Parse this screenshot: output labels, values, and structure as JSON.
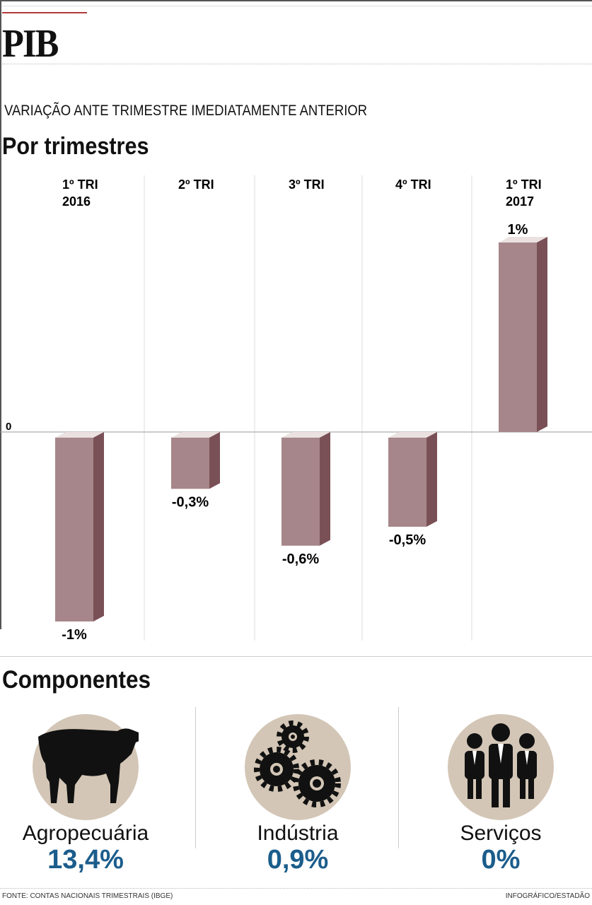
{
  "header": {
    "title": "PIB",
    "subtitle": "VARIAÇÃO ANTE TRIMESTRE IMEDIATAMENTE ANTERIOR",
    "section": "Por trimestres"
  },
  "chart_data": {
    "type": "bar",
    "categories": [
      [
        "1º TRI",
        "2016"
      ],
      [
        "2º TRI",
        ""
      ],
      [
        "3º TRI",
        ""
      ],
      [
        "4º TRI",
        ""
      ],
      [
        "1º TRI",
        "2017"
      ]
    ],
    "values": [
      -1,
      -0.3,
      -0.6,
      -0.5,
      1
    ],
    "data_labels": [
      "-1%",
      "-0,3%",
      "-0,6%",
      "-0,5%",
      "1%"
    ],
    "zero_label": "0",
    "ylim": [
      -1,
      1
    ],
    "colors": {
      "front": "#a6868a",
      "side": "#7a5057",
      "top": "#ebe1e1"
    }
  },
  "components": {
    "title": "Componentes",
    "items": [
      {
        "name": "Agropecuária",
        "value": "13,4%",
        "icon": "cow-icon"
      },
      {
        "name": "Indústria",
        "value": "0,9%",
        "icon": "gears-icon"
      },
      {
        "name": "Serviços",
        "value": "0%",
        "icon": "people-icon"
      }
    ],
    "value_color": "#1b5d8c"
  },
  "footer": {
    "source": "FONTE: CONTAS NACIONAIS TRIMESTRAIS (IBGE)",
    "credit": "INFOGRÁFICO/ESTADÃO"
  }
}
